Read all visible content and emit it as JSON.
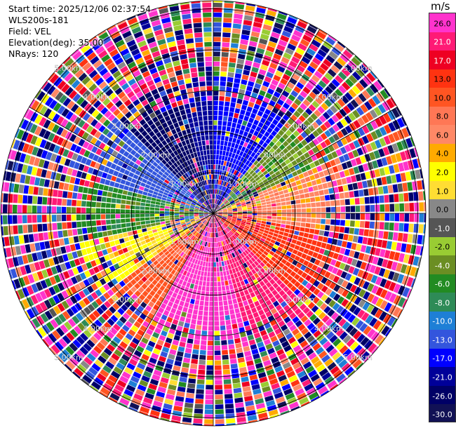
{
  "info": {
    "start_time": "Start time: 2025/12/06 02:37:54",
    "site": "WLS200s-181",
    "field": "Field: VEL",
    "elevation": "Elevation(deg): 35.00",
    "nrays": "NRays: 120"
  },
  "colorbar": {
    "unit": "m/s",
    "levels": [
      {
        "label": "26.0",
        "color": "#ff33cc"
      },
      {
        "label": "21.0",
        "color": "#ff1a75"
      },
      {
        "label": "17.0",
        "color": "#ee0022"
      },
      {
        "label": "13.0",
        "color": "#ff3311"
      },
      {
        "label": "10.0",
        "color": "#ff5522"
      },
      {
        "label": "8.0",
        "color": "#ff7755"
      },
      {
        "label": "6.0",
        "color": "#ff8866"
      },
      {
        "label": "4.0",
        "color": "#ffaa00"
      },
      {
        "label": "2.0",
        "color": "#ffff00"
      },
      {
        "label": "1.0",
        "color": "#ffdd33"
      },
      {
        "label": "0.0",
        "color": "#888888"
      },
      {
        "label": "-1.0",
        "color": "#555555"
      },
      {
        "label": "-2.0",
        "color": "#99cc33"
      },
      {
        "label": "-4.0",
        "color": "#6b8e23"
      },
      {
        "label": "-6.0",
        "color": "#228b22"
      },
      {
        "label": "-8.0",
        "color": "#2e8b57"
      },
      {
        "label": "-10.0",
        "color": "#1e7fd6"
      },
      {
        "label": "-13.0",
        "color": "#3355dd"
      },
      {
        "label": "-17.0",
        "color": "#0000ff"
      },
      {
        "label": "-21.0",
        "color": "#000099"
      },
      {
        "label": "-26.0",
        "color": "#000066"
      },
      {
        "label": "-30.0",
        "color": "#111155"
      }
    ]
  },
  "chart_data": {
    "type": "heatmap",
    "projection": "polar PPI",
    "field": "VEL",
    "unit": "m/s",
    "nrays": 120,
    "elevation_deg": 35.0,
    "range_rings_km": [
      1.0,
      2.0,
      3.0,
      4.0,
      5.0
    ],
    "range_ring_labels": [
      "1.00km",
      "2.00km",
      "3.00km",
      "4.00km",
      "5.00km"
    ],
    "max_range_km": 5.2,
    "valid_data_max_range_km": 2.7,
    "sectors": [
      {
        "azimuth_from_deg": 0,
        "azimuth_to_deg": 40,
        "velocity": -17
      },
      {
        "azimuth_from_deg": 40,
        "azimuth_to_deg": 65,
        "velocity": -4
      },
      {
        "azimuth_from_deg": 65,
        "azimuth_to_deg": 100,
        "velocity": 6
      },
      {
        "azimuth_from_deg": 100,
        "azimuth_to_deg": 135,
        "velocity": 13
      },
      {
        "azimuth_from_deg": 135,
        "azimuth_to_deg": 165,
        "velocity": 21
      },
      {
        "azimuth_from_deg": 165,
        "azimuth_to_deg": 210,
        "velocity": 26
      },
      {
        "azimuth_from_deg": 210,
        "azimuth_to_deg": 235,
        "velocity": 10
      },
      {
        "azimuth_from_deg": 235,
        "azimuth_to_deg": 258,
        "velocity": 2
      },
      {
        "azimuth_from_deg": 258,
        "azimuth_to_deg": 285,
        "velocity": -6
      },
      {
        "azimuth_from_deg": 285,
        "azimuth_to_deg": 315,
        "velocity": -13
      },
      {
        "azimuth_from_deg": 315,
        "azimuth_to_deg": 345,
        "velocity": -26
      },
      {
        "azimuth_from_deg": 345,
        "azimuth_to_deg": 360,
        "velocity": -21
      }
    ],
    "vmin": -30,
    "vmax": 30,
    "legend": "colorbar right"
  }
}
